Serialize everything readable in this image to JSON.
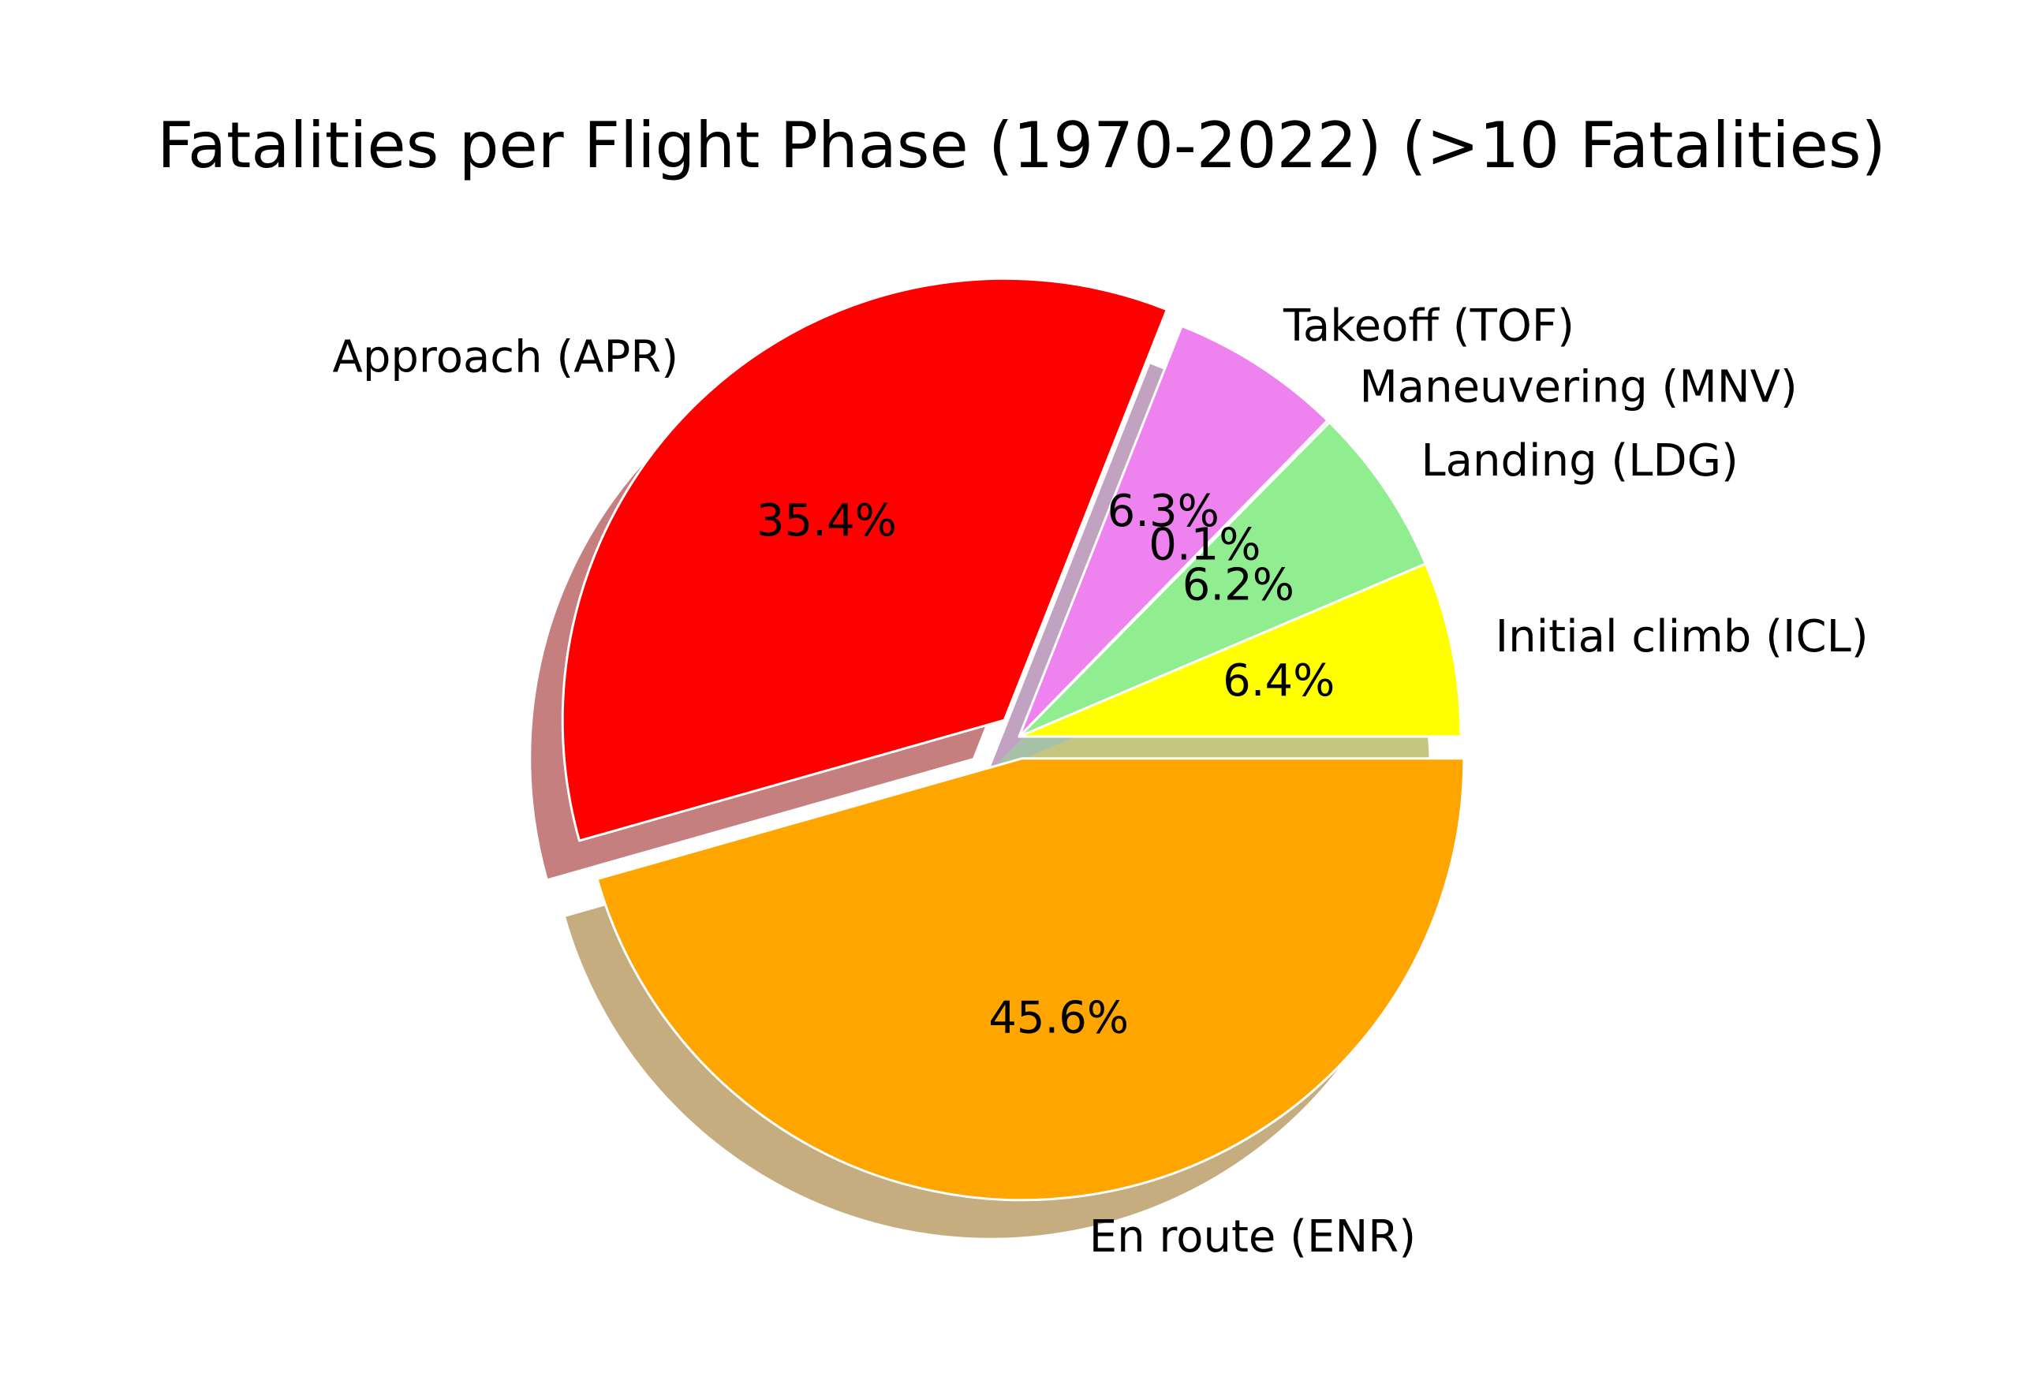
{
  "chart_data": {
    "type": "pie",
    "title": "Fatalities per Flight Phase (1970-2022) (>10 Fatalities)",
    "autopct_format": "1 decimal percent",
    "shadow": true,
    "start_angle_deg": 0,
    "direction": "counterclockwise",
    "slices": [
      {
        "label": "Initial climb (ICL)",
        "value": 6.4,
        "pct_label": "6.4%",
        "color": "#ffff00",
        "explode": 0.0
      },
      {
        "label": "Landing (LDG)",
        "value": 6.2,
        "pct_label": "6.2%",
        "color": "#90ee90",
        "explode": 0.0
      },
      {
        "label": "Maneuvering (MNV)",
        "value": 0.1,
        "pct_label": "0.1%",
        "color": "#add8e6",
        "explode": 0.0
      },
      {
        "label": "Takeoff (TOF)",
        "value": 6.3,
        "pct_label": "6.3%",
        "color": "#ee82ee",
        "explode": 0.0
      },
      {
        "label": "Approach (APR)",
        "value": 35.4,
        "pct_label": "35.4%",
        "color": "#ff0000",
        "explode": 0.05
      },
      {
        "label": "En route (ENR)",
        "value": 45.6,
        "pct_label": "45.6%",
        "color": "#ffa500",
        "explode": 0.05
      }
    ]
  }
}
